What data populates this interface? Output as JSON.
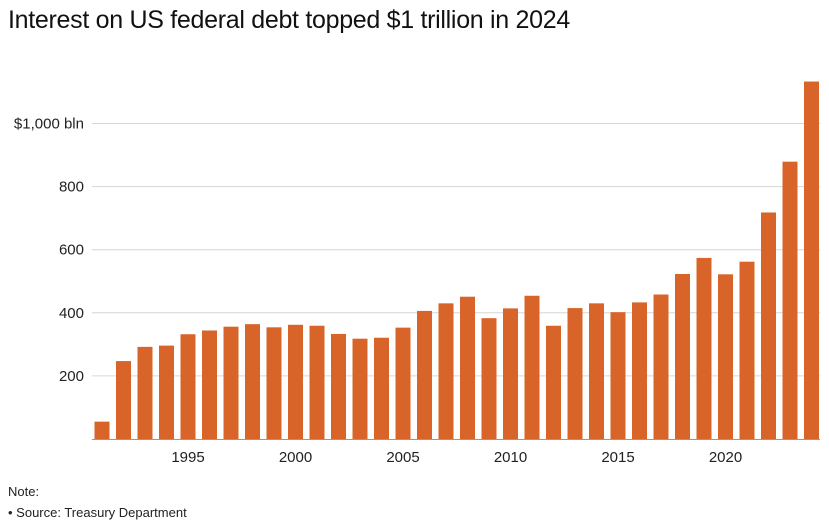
{
  "title": "Interest on US federal debt topped $1 trillion in 2024",
  "note_label": "Note:",
  "source": "• Source: Treasury Department",
  "colors": {
    "bar": "#d9642a",
    "grid": "#d6d6d6",
    "axis": "#999999"
  },
  "chart_data": {
    "type": "bar",
    "title": "Interest on US federal debt topped $1 trillion in 2024",
    "xlabel": "",
    "ylabel": "",
    "x": [
      1991,
      1992,
      1993,
      1994,
      1995,
      1996,
      1997,
      1998,
      1999,
      2000,
      2001,
      2002,
      2003,
      2004,
      2005,
      2006,
      2007,
      2008,
      2009,
      2010,
      2011,
      2012,
      2013,
      2014,
      2015,
      2016,
      2017,
      2018,
      2019,
      2020,
      2021,
      2022,
      2023,
      2024
    ],
    "values": [
      55,
      247,
      292,
      296,
      332,
      344,
      356,
      364,
      354,
      362,
      359,
      333,
      318,
      321,
      353,
      406,
      430,
      451,
      383,
      414,
      454,
      359,
      415,
      430,
      402,
      433,
      458,
      523,
      574,
      522,
      562,
      718,
      879,
      1133
    ],
    "ylim": [
      0,
      1133
    ],
    "yticks": [
      {
        "value": 200,
        "label": "200"
      },
      {
        "value": 400,
        "label": "400"
      },
      {
        "value": 600,
        "label": "600"
      },
      {
        "value": 800,
        "label": "800"
      },
      {
        "value": 1000,
        "label": "$1,000 bln"
      }
    ],
    "xticks": [
      {
        "value": 1995,
        "label": "1995"
      },
      {
        "value": 2000,
        "label": "2000"
      },
      {
        "value": 2005,
        "label": "2005"
      },
      {
        "value": 2010,
        "label": "2010"
      },
      {
        "value": 2015,
        "label": "2015"
      },
      {
        "value": 2020,
        "label": "2020"
      }
    ],
    "grid": true,
    "legend": "none"
  }
}
